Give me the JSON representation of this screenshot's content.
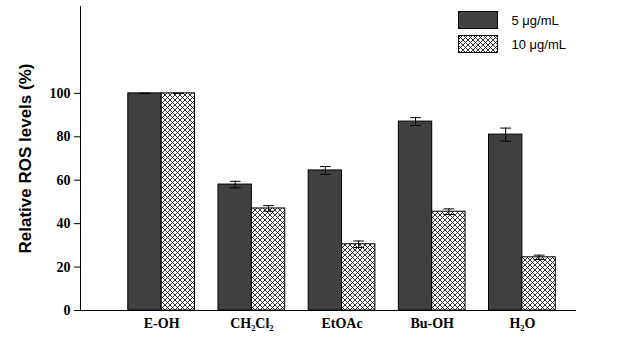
{
  "chart_data": {
    "type": "bar",
    "categories": [
      "E-OH",
      "CH₂Cl₂",
      "EtOAc",
      "Bu-OH",
      "H₂O"
    ],
    "series": [
      {
        "name": "5 μg/mL",
        "color": "#404040",
        "values": [
          100,
          58,
          64.5,
          87,
          81
        ],
        "errors": [
          0,
          1.5,
          1.8,
          1.8,
          3
        ]
      },
      {
        "name": "10 μg/mL",
        "color": "#000000",
        "marker": "crosshatch",
        "values": [
          100,
          47,
          30.5,
          45.5,
          24.5
        ],
        "errors": [
          0,
          1.3,
          1.5,
          1.3,
          1
        ]
      }
    ],
    "y_label": "Relative ROS levels (%)",
    "ylim": [
      0,
      140
    ],
    "yticks": [
      0,
      20,
      40,
      60,
      80,
      100
    ],
    "legend": "upper right",
    "grid": false
  }
}
